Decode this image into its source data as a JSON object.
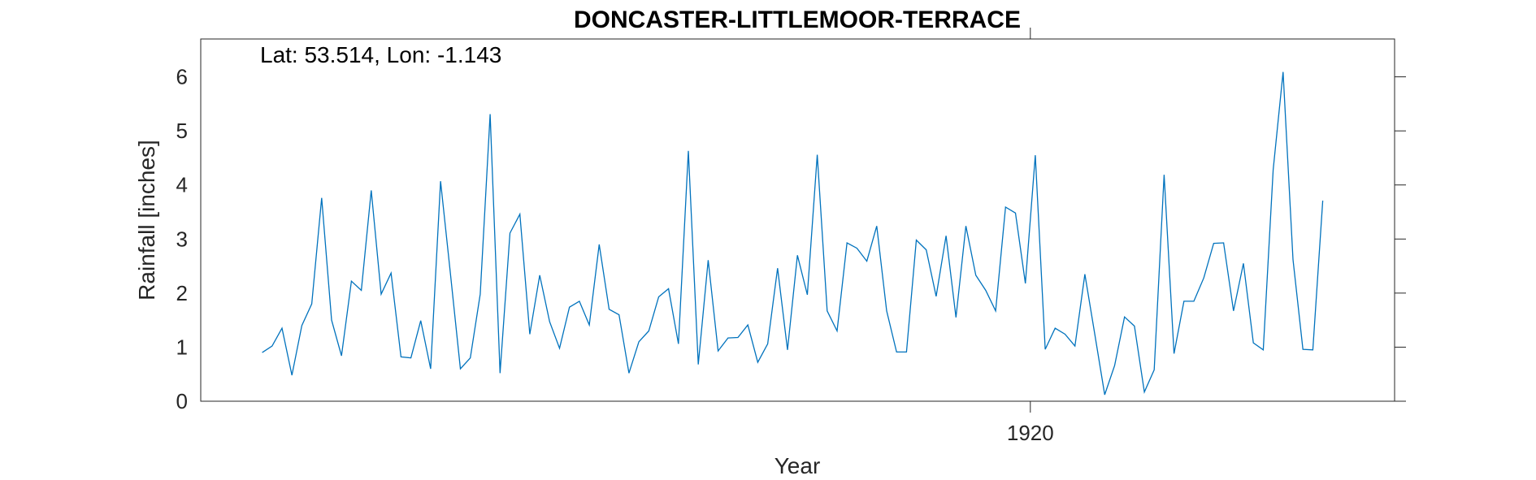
{
  "chart_data": {
    "type": "line",
    "title": "DONCASTER-LITTLEMOOR-TERRACE",
    "annotation": "Lat: 53.514, Lon: -1.143",
    "xlabel": "Year",
    "ylabel": "Rainfall [inches]",
    "ylim": [
      0,
      6.7
    ],
    "yticks": [
      0,
      1,
      2,
      3,
      4,
      5,
      6
    ],
    "xticks": [
      {
        "value": 1920,
        "label": "1920"
      }
    ],
    "xlim": [
      1911.63,
      1923.675
    ],
    "grid": false,
    "color": "#0072BD",
    "series": [
      {
        "x": [
          1912.25,
          1912.35,
          1912.45,
          1912.55,
          1912.65,
          1912.75,
          1912.85,
          1912.95,
          1913.05,
          1913.15,
          1913.25,
          1913.35,
          1913.45,
          1913.55,
          1913.65,
          1913.75,
          1913.85,
          1913.95,
          1914.05,
          1914.15,
          1914.25,
          1914.35,
          1914.45,
          1914.55,
          1914.65,
          1914.75,
          1914.85,
          1914.95,
          1915.05,
          1915.15,
          1915.25,
          1915.35,
          1915.45,
          1915.55,
          1915.65,
          1915.75,
          1915.85,
          1915.95,
          1916.05,
          1916.15,
          1916.25,
          1916.35,
          1916.45,
          1916.55,
          1916.65,
          1916.75,
          1916.85,
          1916.95,
          1917.05,
          1917.15,
          1917.25,
          1917.35,
          1917.45,
          1917.55,
          1917.65,
          1917.75,
          1917.85,
          1917.95,
          1918.05,
          1918.15,
          1918.25,
          1918.35,
          1918.45,
          1918.55,
          1918.65,
          1918.75,
          1918.85,
          1918.95,
          1919.05,
          1919.15,
          1919.25,
          1919.35,
          1919.45,
          1919.55,
          1919.65,
          1919.75,
          1919.85,
          1919.95,
          1920.05,
          1920.15,
          1920.25,
          1920.35,
          1920.45,
          1920.55,
          1920.65,
          1920.75,
          1920.85,
          1920.95,
          1921.05,
          1921.15,
          1921.25,
          1921.35,
          1921.45,
          1921.55,
          1921.65,
          1921.75,
          1921.85,
          1921.95,
          1922.05,
          1922.15,
          1922.25,
          1922.35,
          1922.45,
          1922.55,
          1922.65,
          1922.75,
          1922.85,
          1922.95
        ],
        "values": [
          0.9,
          1.02,
          1.35,
          0.48,
          1.4,
          1.8,
          3.76,
          1.5,
          0.84,
          2.22,
          2.05,
          3.9,
          1.98,
          2.37,
          0.82,
          0.8,
          1.49,
          0.6,
          4.07,
          2.35,
          0.6,
          0.8,
          1.98,
          5.31,
          0.52,
          3.11,
          3.46,
          1.24,
          2.33,
          1.47,
          0.98,
          1.74,
          1.85,
          1.41,
          2.9,
          1.7,
          1.6,
          0.52,
          1.1,
          1.3,
          1.93,
          2.08,
          1.06,
          4.63,
          0.68,
          2.61,
          0.93,
          1.17,
          1.18,
          1.41,
          0.72,
          1.06,
          2.46,
          0.95,
          2.7,
          1.97,
          4.56,
          1.67,
          1.3,
          2.93,
          2.83,
          2.59,
          3.24,
          1.67,
          0.91,
          0.91,
          2.98,
          2.8,
          1.94,
          3.06,
          1.55,
          3.24,
          2.33,
          2.05,
          1.67,
          3.59,
          3.48,
          2.18,
          4.55,
          0.96,
          1.35,
          1.24,
          1.02,
          2.35,
          1.24,
          0.12,
          0.66,
          1.56,
          1.39,
          0.17,
          0.58,
          4.19,
          0.88,
          1.85,
          1.85,
          2.28,
          2.92,
          2.93,
          1.67,
          2.55,
          1.08,
          0.95,
          4.28,
          6.09,
          2.62,
          0.96,
          0.95,
          3.71
        ]
      }
    ]
  }
}
